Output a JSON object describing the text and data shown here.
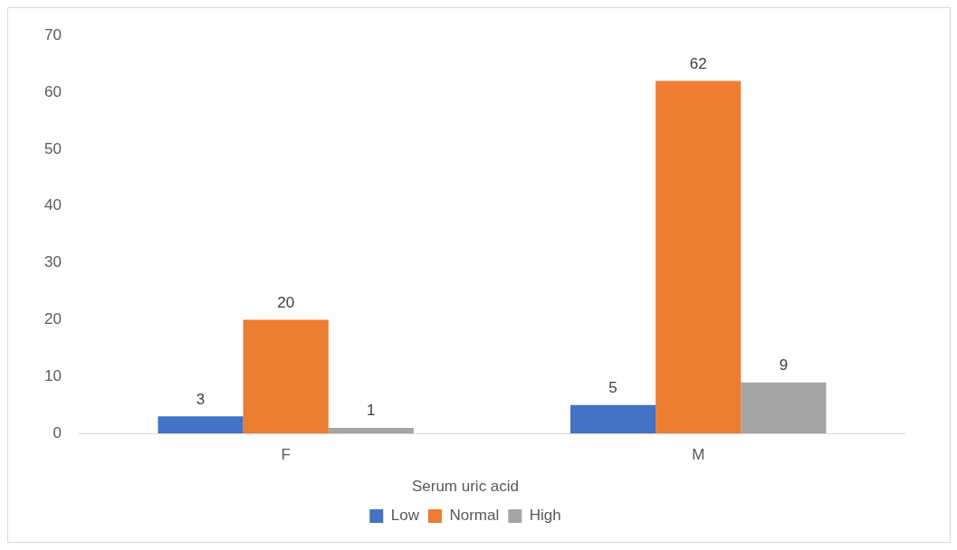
{
  "chart_data": {
    "type": "bar",
    "categories": [
      "F",
      "M"
    ],
    "series": [
      {
        "name": "Low",
        "color": "#4472c4",
        "values": [
          3,
          5
        ]
      },
      {
        "name": "Normal",
        "color": "#ed7d31",
        "values": [
          20,
          62
        ]
      },
      {
        "name": "High",
        "color": "#a5a5a5",
        "values": [
          1,
          9
        ]
      }
    ],
    "legend_title": "Serum uric acid",
    "legend": "bottom",
    "ylim": [
      0,
      70
    ],
    "yticks": [
      0,
      10,
      20,
      30,
      40,
      50,
      60,
      70
    ],
    "grid": false,
    "data_labels": true
  }
}
